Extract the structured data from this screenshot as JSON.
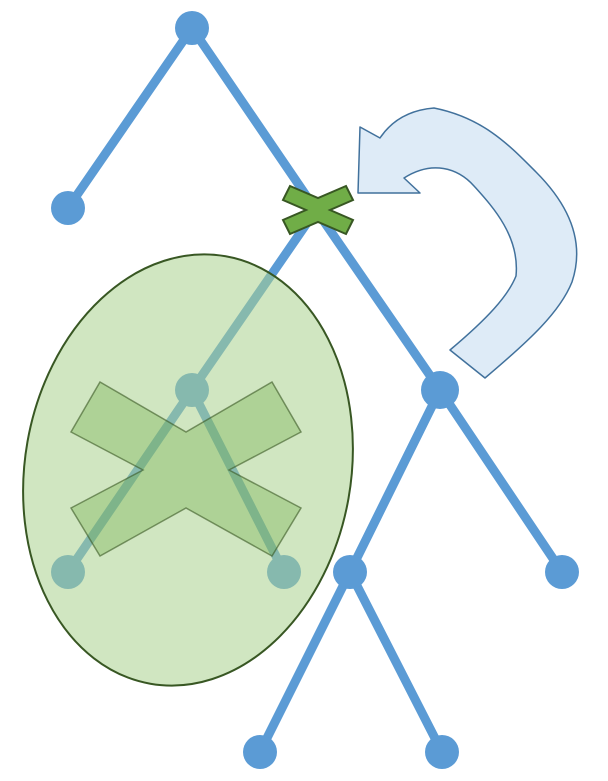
{
  "colors": {
    "background": "#ffffff",
    "edge": "#5b9bd5",
    "node": "#5b9bd5",
    "pruned_region_fill": "#a9d18e",
    "pruned_region_stroke": "#385723",
    "cross_fill": "#70ad47",
    "cross_stroke": "#385723",
    "arrow_fill": "#deebf7",
    "arrow_stroke": "#41719c"
  },
  "icons": {
    "cut_marker": "cross-icon",
    "pruned_marker": "large-cross-icon",
    "return_arrow": "curved-arrow-icon"
  }
}
